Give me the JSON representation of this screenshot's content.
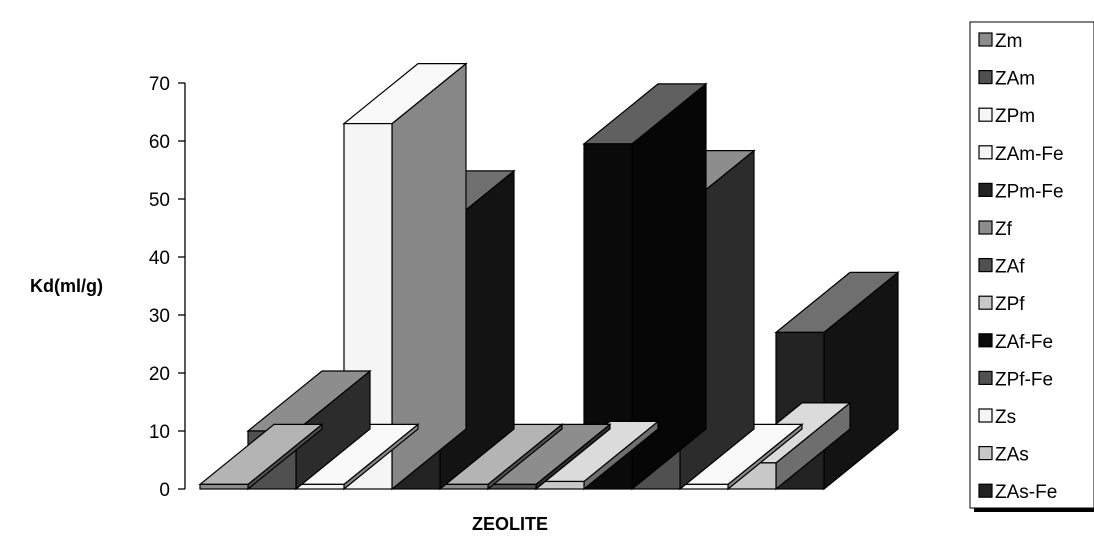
{
  "chart_data": {
    "type": "bar",
    "title": "",
    "xlabel": "ZEOLITE",
    "ylabel": "Kd(ml/g)",
    "ylim": [
      0,
      70
    ],
    "yticks": [
      0,
      10,
      20,
      30,
      40,
      50,
      60,
      70
    ],
    "legend_position": "right",
    "grid": false,
    "series": [
      {
        "name": "Zm",
        "value": 0.8,
        "color": "#8c8c8c"
      },
      {
        "name": "ZAm",
        "value": 10,
        "color": "#505050"
      },
      {
        "name": "ZPm",
        "value": 0.8,
        "color": "#f5f5f5"
      },
      {
        "name": "ZAm-Fe",
        "value": 63,
        "color": "#f5f5f5"
      },
      {
        "name": "ZPm-Fe",
        "value": 44.5,
        "color": "#222222"
      },
      {
        "name": "Zf",
        "value": 0.8,
        "color": "#8c8c8c"
      },
      {
        "name": "ZAf",
        "value": 0.8,
        "color": "#505050"
      },
      {
        "name": "ZPf",
        "value": 1.3,
        "color": "#c8c8c8"
      },
      {
        "name": "ZAf-Fe",
        "value": 59.5,
        "color": "#0a0a0a"
      },
      {
        "name": "ZPf-Fe",
        "value": 48,
        "color": "#505050"
      },
      {
        "name": "Zs",
        "value": 0.8,
        "color": "#f5f5f5"
      },
      {
        "name": "ZAs",
        "value": 4.5,
        "color": "#c8c8c8"
      },
      {
        "name": "ZAs-Fe",
        "value": 27,
        "color": "#222222"
      }
    ]
  }
}
